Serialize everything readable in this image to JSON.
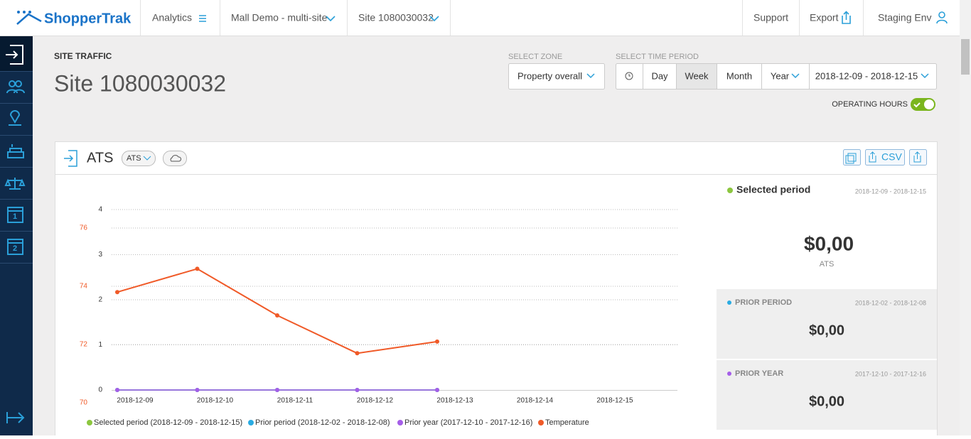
{
  "header": {
    "logo": "ShopperTrak",
    "nav": [
      "Analytics",
      "Mall Demo - multi-site",
      "Site 1080030032"
    ],
    "right": [
      "Support",
      "Export",
      "Staging Env"
    ]
  },
  "page": {
    "section": "SITE TRAFFIC",
    "title": "Site 1080030032"
  },
  "controls": {
    "zone_label": "SELECT ZONE",
    "zone_value": "Property overall",
    "period_label": "SELECT TIME PERIOD",
    "period_buttons": [
      "Day",
      "Week",
      "Month",
      "Year"
    ],
    "date_range": "2018-12-09 - 2018-12-15",
    "operating_hours": "OPERATING HOURS"
  },
  "widget": {
    "title": "ATS",
    "chip": "ATS",
    "csv": "CSV"
  },
  "chart_data": {
    "type": "line",
    "categories": [
      "2018-12-09",
      "2018-12-10",
      "2018-12-11",
      "2018-12-12",
      "2018-12-13",
      "2018-12-14",
      "2018-12-15"
    ],
    "series": [
      {
        "name": "Selected period (2018-12-09 - 2018-12-15)",
        "color": "#8cc63f",
        "values": [
          0,
          0,
          0,
          0,
          0,
          null,
          null
        ]
      },
      {
        "name": "Prior period (2018-12-02 - 2018-12-08)",
        "color": "#29abe2",
        "values": [
          0,
          0,
          0,
          0,
          0,
          null,
          null
        ]
      },
      {
        "name": "Prior year (2017-12-10 - 2017-12-16)",
        "color": "#a55ee8",
        "values": [
          0,
          0,
          0,
          0,
          0,
          null,
          null
        ]
      },
      {
        "name": "Temperature",
        "color": "#f05a28",
        "axis": "y2",
        "values": [
          73.8,
          74.6,
          73.0,
          71.7,
          72.1,
          null,
          null
        ]
      }
    ],
    "ylim": [
      0,
      4.3
    ],
    "yticks": [
      0,
      1,
      2,
      3,
      4
    ],
    "y2lim": [
      70,
      77
    ],
    "y2ticks": [
      70,
      72,
      74,
      76
    ],
    "grid": true
  },
  "summary": [
    {
      "label": "Selected period",
      "dates": "2018-12-09 - 2018-12-15",
      "value": "$0,00",
      "unit": "ATS"
    },
    {
      "label": "PRIOR PERIOD",
      "dates": "2018-12-02 - 2018-12-08",
      "value": "$0,00"
    },
    {
      "label": "PRIOR YEAR",
      "dates": "2017-12-10 - 2017-12-16",
      "value": "$0,00"
    }
  ]
}
